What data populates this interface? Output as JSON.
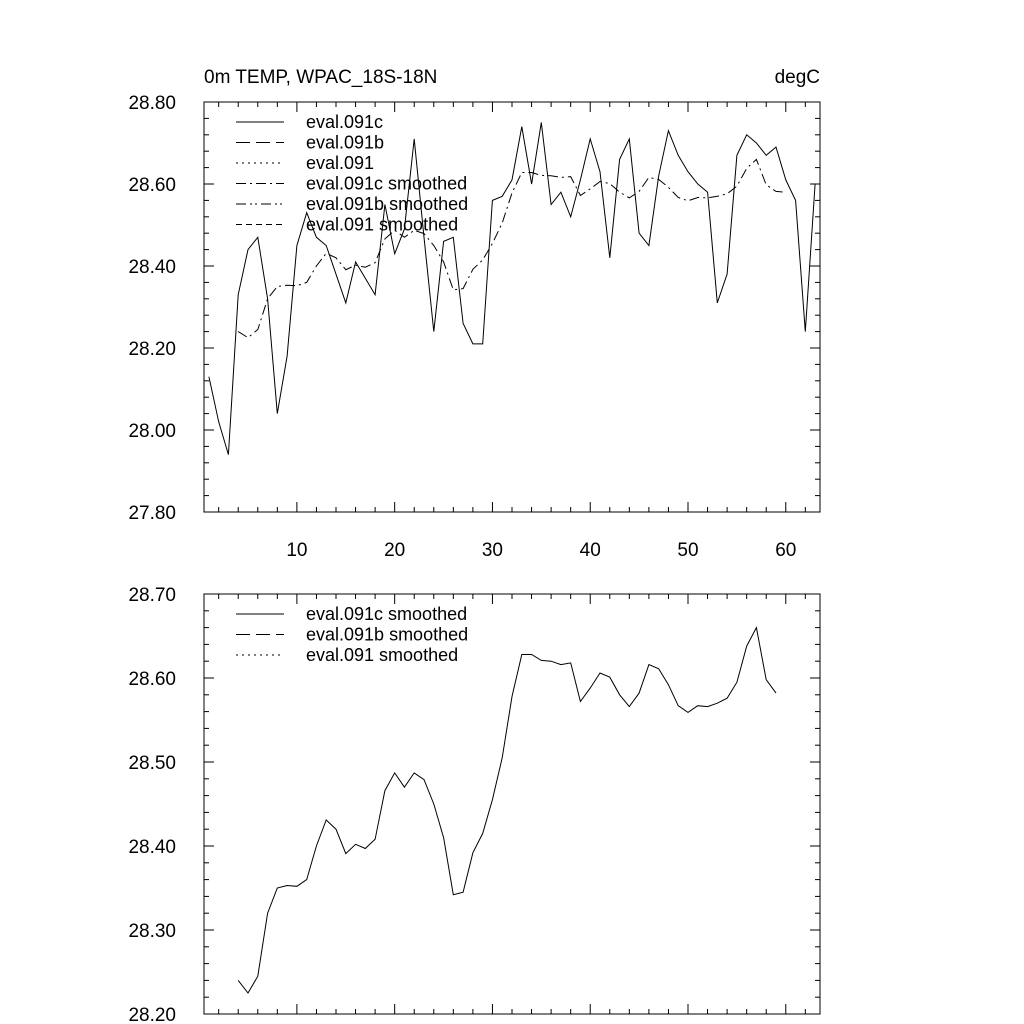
{
  "chart_data": [
    {
      "type": "line",
      "title": "0m TEMP, WPAC_18S-18N",
      "units": "degC",
      "xlabel": "",
      "ylabel": "",
      "xlim": [
        0.5,
        63.5
      ],
      "ylim": [
        27.8,
        28.8
      ],
      "xticks": [
        10,
        20,
        30,
        40,
        50,
        60
      ],
      "yticks": [
        27.8,
        28.0,
        28.2,
        28.4,
        28.6,
        28.8
      ],
      "ytick_labels": [
        "27.80",
        "28.00",
        "28.20",
        "28.40",
        "28.60",
        "28.80"
      ],
      "grid": false,
      "legend_position": "top-left",
      "legend": [
        {
          "label": "eval.091c",
          "dash": "solid"
        },
        {
          "label": "eval.091b",
          "dash": "long-dash"
        },
        {
          "label": "eval.091",
          "dash": "dotted"
        },
        {
          "label": "eval.091c smoothed",
          "dash": "dash-dot"
        },
        {
          "label": "eval.091b smoothed",
          "dash": "dash-dot-dot"
        },
        {
          "label": "eval.091 smoothed",
          "dash": "short-dash"
        }
      ],
      "series": [
        {
          "name": "eval.091c",
          "x": [
            1,
            2,
            3,
            4,
            5,
            6,
            7,
            8,
            9,
            10,
            11,
            12,
            13,
            14,
            15,
            16,
            17,
            18,
            19,
            20,
            21,
            22,
            23,
            24,
            25,
            26,
            27,
            28,
            29,
            30,
            31,
            32,
            33,
            34,
            35,
            36,
            37,
            38,
            39,
            40,
            41,
            42,
            43,
            44,
            45,
            46,
            47,
            48,
            49,
            50,
            51,
            52,
            53,
            54,
            55,
            56,
            57,
            58,
            59,
            60,
            61,
            62,
            63
          ],
          "y": [
            28.13,
            28.02,
            27.94,
            28.33,
            28.44,
            28.47,
            28.32,
            28.04,
            28.18,
            28.45,
            28.53,
            28.47,
            28.45,
            28.38,
            28.31,
            28.41,
            28.37,
            28.33,
            28.55,
            28.43,
            28.49,
            28.71,
            28.47,
            28.24,
            28.46,
            28.47,
            28.26,
            28.21,
            28.21,
            28.56,
            28.57,
            28.61,
            28.74,
            28.6,
            28.75,
            28.55,
            28.58,
            28.52,
            28.61,
            28.71,
            28.63,
            28.42,
            28.66,
            28.71,
            28.48,
            28.45,
            28.62,
            28.73,
            28.67,
            28.63,
            28.6,
            28.58,
            28.31,
            28.38,
            28.67,
            28.72,
            28.7,
            28.67,
            28.69,
            28.61,
            28.56,
            28.24,
            28.6
          ]
        },
        {
          "name": "eval.091c smoothed",
          "x": [
            4,
            5,
            6,
            7,
            8,
            9,
            10,
            11,
            12,
            13,
            14,
            15,
            16,
            17,
            18,
            19,
            20,
            21,
            22,
            23,
            24,
            25,
            26,
            27,
            28,
            29,
            30,
            31,
            32,
            33,
            34,
            35,
            36,
            37,
            38,
            39,
            40,
            41,
            42,
            43,
            44,
            45,
            46,
            47,
            48,
            49,
            50,
            51,
            52,
            53,
            54,
            55,
            56,
            57,
            58,
            59,
            60
          ],
          "y": [
            28.24,
            28.225,
            28.245,
            28.32,
            28.35,
            28.353,
            28.352,
            28.36,
            28.4,
            28.431,
            28.42,
            28.391,
            28.402,
            28.397,
            28.408,
            28.466,
            28.487,
            28.47,
            28.487,
            28.479,
            28.45,
            28.41,
            28.342,
            28.345,
            28.392,
            28.415,
            28.455,
            28.505,
            28.578,
            28.628,
            28.628,
            28.621,
            28.62,
            28.616,
            28.618,
            28.572,
            28.588,
            28.606,
            28.601,
            28.58,
            28.566,
            28.582,
            28.616,
            28.611,
            28.592,
            28.567,
            28.559,
            28.567,
            28.566,
            28.57,
            28.576,
            28.595,
            28.638,
            28.66,
            28.598,
            28.582,
            28.58
          ]
        }
      ]
    },
    {
      "type": "line",
      "title": "",
      "xlabel": "",
      "ylabel": "",
      "xlim": [
        0.5,
        63.5
      ],
      "ylim": [
        28.2,
        28.7
      ],
      "xticks": [
        10,
        20,
        30,
        40,
        50,
        60
      ],
      "yticks": [
        28.2,
        28.3,
        28.4,
        28.5,
        28.6,
        28.7
      ],
      "ytick_labels": [
        "28.20",
        "28.30",
        "28.40",
        "28.50",
        "28.60",
        "28.70"
      ],
      "grid": false,
      "legend_position": "top-left",
      "legend": [
        {
          "label": "eval.091c smoothed",
          "dash": "solid"
        },
        {
          "label": "eval.091b smoothed",
          "dash": "long-dash"
        },
        {
          "label": "eval.091 smoothed",
          "dash": "dotted"
        }
      ],
      "series": [
        {
          "name": "eval.091c smoothed",
          "x": [
            4,
            5,
            6,
            7,
            8,
            9,
            10,
            11,
            12,
            13,
            14,
            15,
            16,
            17,
            18,
            19,
            20,
            21,
            22,
            23,
            24,
            25,
            26,
            27,
            28,
            29,
            30,
            31,
            32,
            33,
            34,
            35,
            36,
            37,
            38,
            39,
            40,
            41,
            42,
            43,
            44,
            45,
            46,
            47,
            48,
            49,
            50,
            51,
            52,
            53,
            54,
            55,
            56,
            57,
            58,
            59
          ],
          "y": [
            28.24,
            28.225,
            28.245,
            28.32,
            28.35,
            28.353,
            28.352,
            28.36,
            28.4,
            28.431,
            28.42,
            28.391,
            28.402,
            28.397,
            28.408,
            28.466,
            28.487,
            28.47,
            28.487,
            28.479,
            28.45,
            28.41,
            28.342,
            28.345,
            28.392,
            28.415,
            28.455,
            28.505,
            28.578,
            28.628,
            28.628,
            28.621,
            28.62,
            28.616,
            28.618,
            28.572,
            28.588,
            28.606,
            28.601,
            28.58,
            28.566,
            28.582,
            28.616,
            28.611,
            28.592,
            28.567,
            28.559,
            28.567,
            28.566,
            28.57,
            28.576,
            28.595,
            28.638,
            28.66,
            28.598,
            28.582
          ]
        }
      ]
    }
  ]
}
